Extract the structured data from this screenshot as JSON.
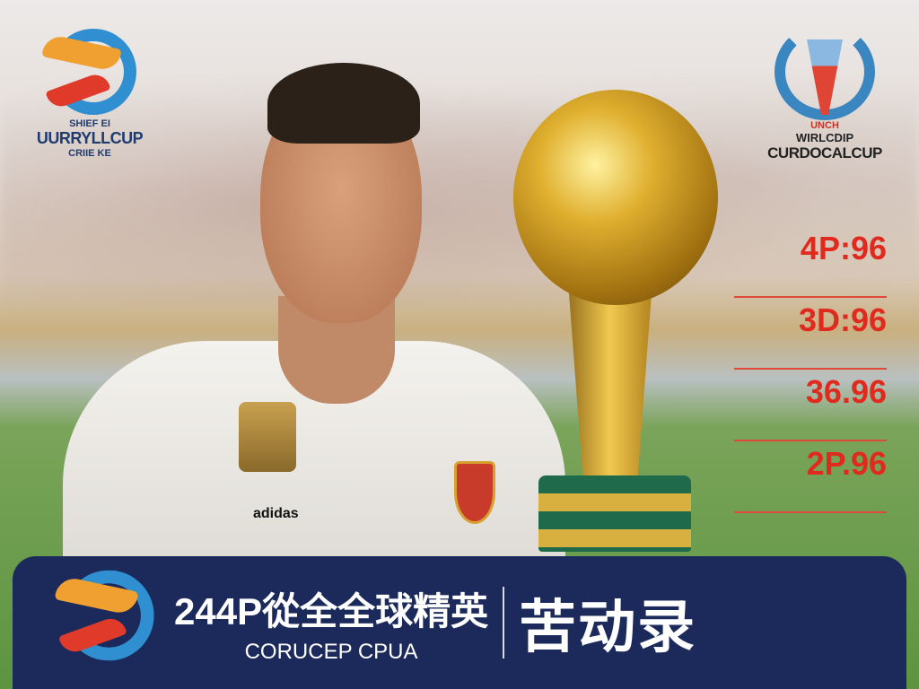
{
  "logo_left": {
    "top_text": "SHIEF EI",
    "main_text": "UURRYLLCUP",
    "bottom_text": "CRIIE KE"
  },
  "logo_right": {
    "small_text": "UNCH",
    "line1": "WIRLCDIP",
    "line2": "CURDOCALCUP"
  },
  "scores": [
    "4P:96",
    "3D:96",
    "36.96",
    "2P.96"
  ],
  "banner": {
    "title": "244P從全全球精英",
    "subtitle": "CORUCEP CPUA",
    "right_text": "苦动录"
  },
  "shirt": {
    "brand": "adidas"
  },
  "colors": {
    "banner_bg": "#1b2a5a",
    "score_red": "#e02a1e",
    "logo_navy": "#1f3b70"
  }
}
